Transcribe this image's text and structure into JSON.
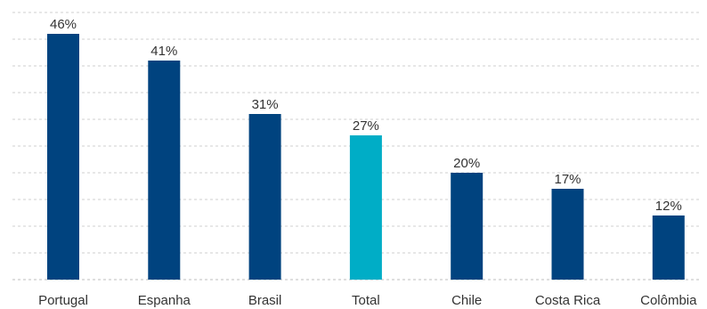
{
  "chart_data": {
    "type": "bar",
    "categories": [
      "Portugal",
      "Espanha",
      "Brasil",
      "Total",
      "Chile",
      "Costa Rica",
      "Colômbia"
    ],
    "values": [
      46,
      41,
      31,
      27,
      20,
      17,
      12
    ],
    "value_labels": [
      "46%",
      "41%",
      "31%",
      "27%",
      "20%",
      "17%",
      "12%"
    ],
    "highlight_category": "Total",
    "ylim": [
      0,
      50
    ],
    "grid": true,
    "legend": "none",
    "colors": {
      "default_bar": "#00437f",
      "highlight_bar": "#00adc6",
      "grid": "#cfcfcf",
      "text": "#333333"
    }
  }
}
